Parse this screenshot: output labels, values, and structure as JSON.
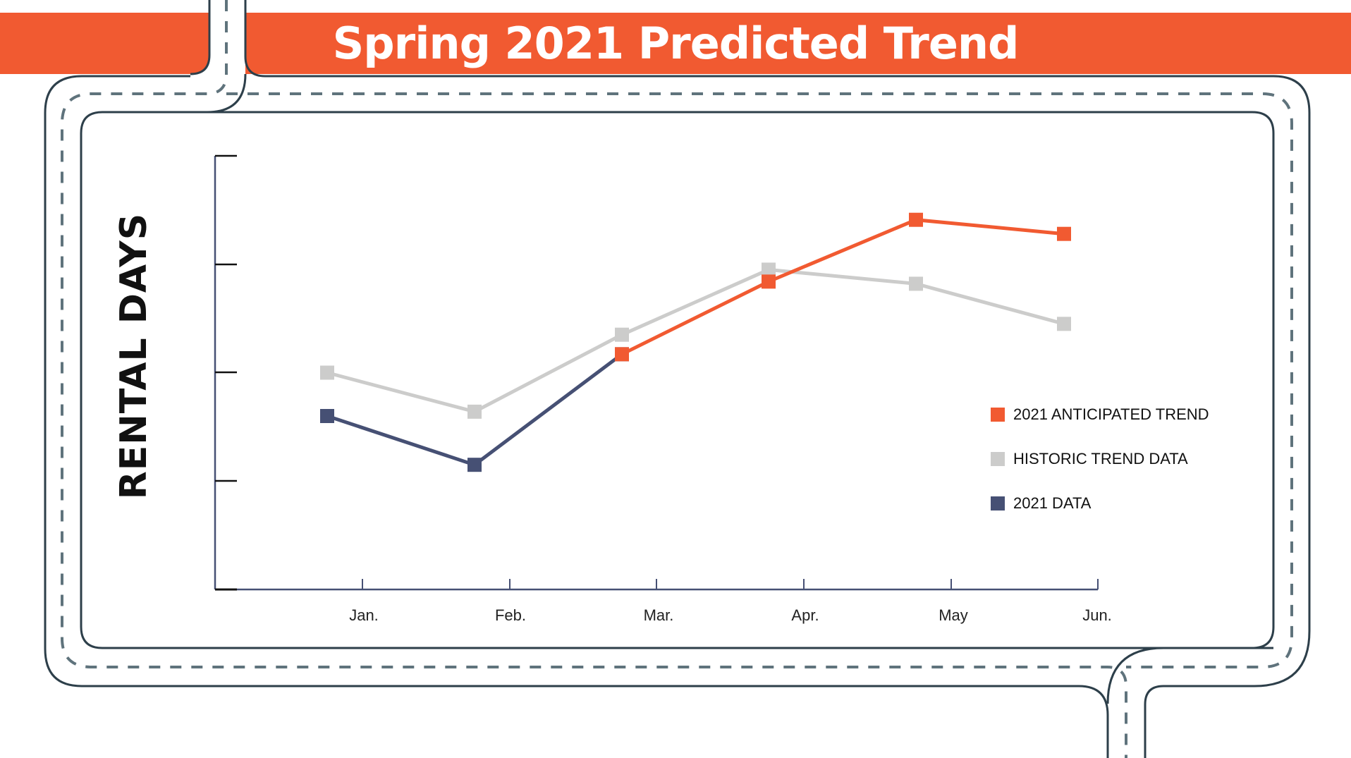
{
  "header": {
    "title": "Spring 2021 Predicted Trend"
  },
  "colors": {
    "banner": "#f15a31",
    "anticipated": "#f15a31",
    "historic": "#cccccb",
    "data2021": "#465074",
    "road_edge": "#2d3f4a",
    "road_dash": "#5f737c",
    "axis": "#465074"
  },
  "axis": {
    "ylabel": "RENTAL DAYS",
    "xticks": [
      "Jan.",
      "Feb.",
      "Mar.",
      "Apr.",
      "May",
      "Jun."
    ]
  },
  "legend": {
    "items": [
      {
        "label": "2021 ANTICIPATED TREND",
        "color": "#f15a31"
      },
      {
        "label": "HISTORIC TREND DATA",
        "color": "#cccccb"
      },
      {
        "label": "2021 DATA",
        "color": "#465074"
      }
    ]
  },
  "chart_data": {
    "type": "line",
    "title": "Spring 2021 Predicted Trend",
    "xlabel": "",
    "ylabel": "RENTAL DAYS",
    "x": [
      "Jan.",
      "Feb.",
      "Mar.",
      "Apr.",
      "May",
      "Jun."
    ],
    "ylim": [
      0,
      4
    ],
    "y_tick_labels_shown": false,
    "grid": false,
    "legend_position": "right",
    "series": [
      {
        "name": "HISTORIC TREND DATA",
        "color": "#cccccb",
        "values": [
          2.0,
          1.64,
          2.35,
          2.95,
          2.82,
          2.45
        ]
      },
      {
        "name": "2021 DATA",
        "color": "#465074",
        "values": [
          1.6,
          1.15,
          2.17,
          null,
          null,
          null
        ]
      },
      {
        "name": "2021 ANTICIPATED TREND",
        "color": "#f15a31",
        "values": [
          null,
          null,
          2.17,
          2.84,
          3.41,
          3.28
        ]
      }
    ],
    "note": "Markers are offset left of the tick positions; y-axis values are in relative tick units (no numeric labels shown)."
  }
}
